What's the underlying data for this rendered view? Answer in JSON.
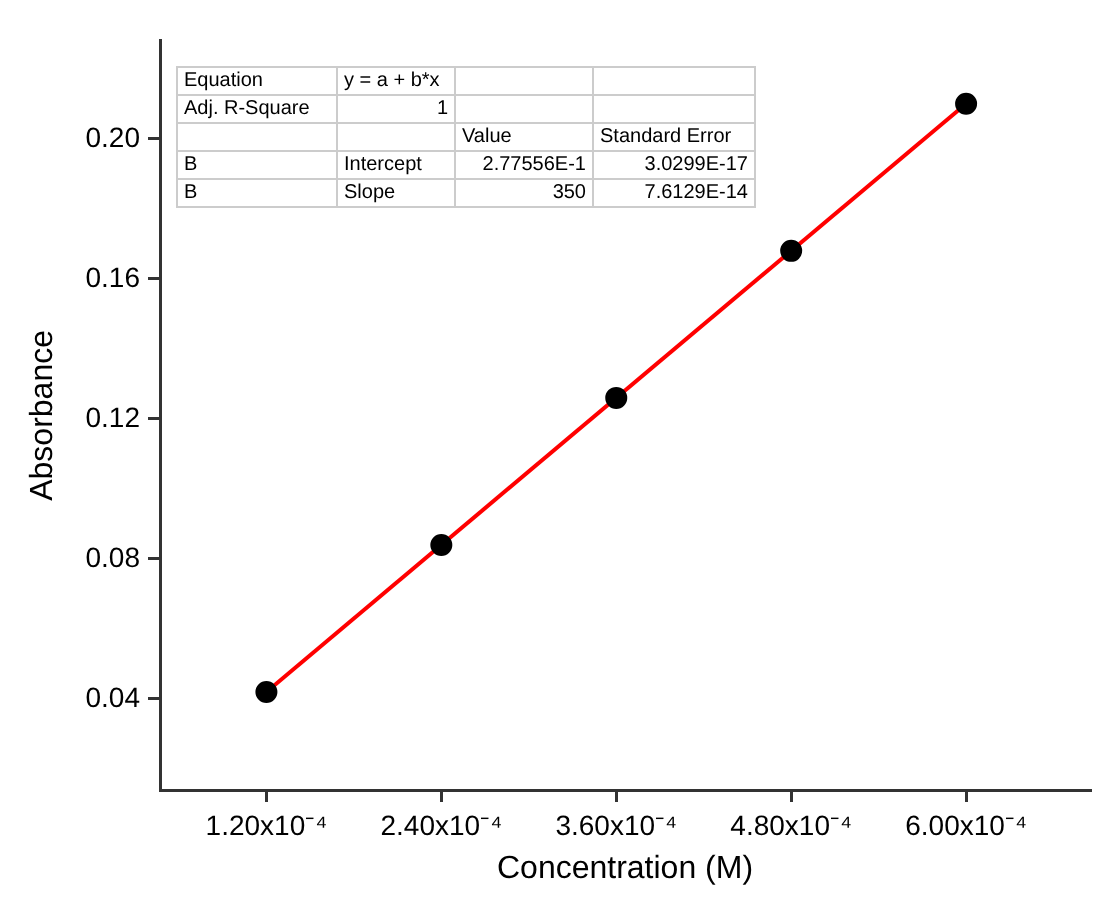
{
  "chart_data": {
    "type": "scatter",
    "xlabel": "Concentration (M)",
    "ylabel": "Absorbance",
    "xlim": [
      4.7e-05,
      0.000685
    ],
    "ylim": [
      0.014,
      0.228
    ],
    "xticks": [
      {
        "value": 0.00012,
        "label": "1.20x10⁻⁴"
      },
      {
        "value": 0.00024,
        "label": "2.40x10⁻⁴"
      },
      {
        "value": 0.00036,
        "label": "3.60x10⁻⁴"
      },
      {
        "value": 0.00048,
        "label": "4.80x10⁻⁴"
      },
      {
        "value": 0.0006,
        "label": "6.00x10⁻⁴"
      }
    ],
    "yticks": [
      {
        "value": 0.04,
        "label": "0.04"
      },
      {
        "value": 0.08,
        "label": "0.08"
      },
      {
        "value": 0.12,
        "label": "0.12"
      },
      {
        "value": 0.16,
        "label": "0.16"
      },
      {
        "value": 0.2,
        "label": "0.20"
      }
    ],
    "grid": false,
    "legend": false,
    "series": [
      {
        "type": "line",
        "color": "#ff0000",
        "x": [
          0.00012,
          0.0006
        ],
        "values": [
          0.042,
          0.21
        ],
        "marker": "none",
        "line_style": "solid"
      },
      {
        "type": "scatter",
        "color": "#000000",
        "x": [
          0.00012,
          0.00024,
          0.00036,
          0.00048,
          0.0006
        ],
        "values": [
          0.042,
          0.084,
          0.126,
          0.168,
          0.21
        ],
        "marker": "circle"
      }
    ],
    "annotations": [
      "Equation",
      "y = a + b*x",
      "Adj. R-Square",
      "1",
      "Value",
      "Standard Error",
      "B",
      "Intercept",
      "2.77556E-1",
      "3.0299E-17",
      "B",
      "Slope",
      "350",
      "7.6129E-14"
    ]
  }
}
